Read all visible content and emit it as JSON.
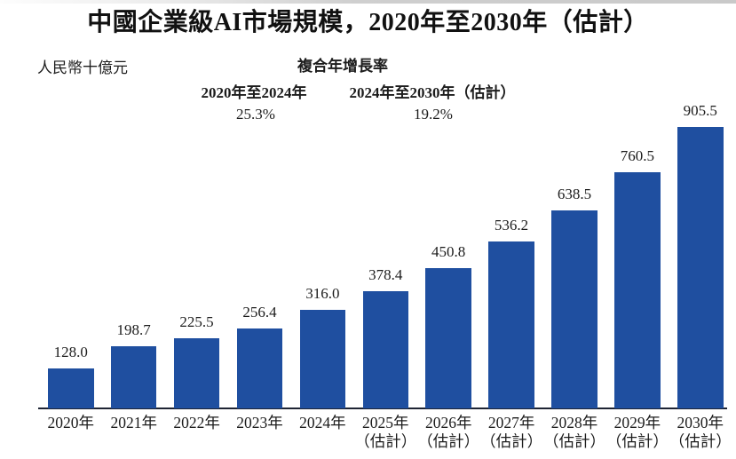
{
  "page": {
    "background": "#ffffff",
    "top_strip_color": "#cfcfcf"
  },
  "title": "中國企業級AI市場規模，2020年至2030年（估計）",
  "unit_label": "人民幣十億元",
  "cagr": {
    "heading": "複合年增長率",
    "periods": [
      {
        "label": "2020年至2024年",
        "value": "25.3%"
      },
      {
        "label": "2024年至2030年（估計）",
        "value": "19.2%"
      }
    ]
  },
  "chart_data": {
    "type": "bar",
    "title": "中國企業級AI市場規模，2020年至2030年（估計）",
    "ylabel": "人民幣十億元",
    "categories": [
      "2020年",
      "2021年",
      "2022年",
      "2023年",
      "2024年",
      "2025年",
      "2026年",
      "2027年",
      "2028年",
      "2029年",
      "2030年"
    ],
    "estimate_note": "（估計）",
    "estimate_start_index": 5,
    "values": [
      128.0,
      198.7,
      225.5,
      256.4,
      316.0,
      378.4,
      450.8,
      536.2,
      638.5,
      760.5,
      905.5
    ],
    "value_label_decimals": 1,
    "bar_color": "#1f4fa0",
    "axis_color": "#1e2433",
    "text_color": "#1c1c1c",
    "ylim": [
      0,
      960
    ],
    "grid": false,
    "legend": null,
    "value_labels_shown": true
  }
}
